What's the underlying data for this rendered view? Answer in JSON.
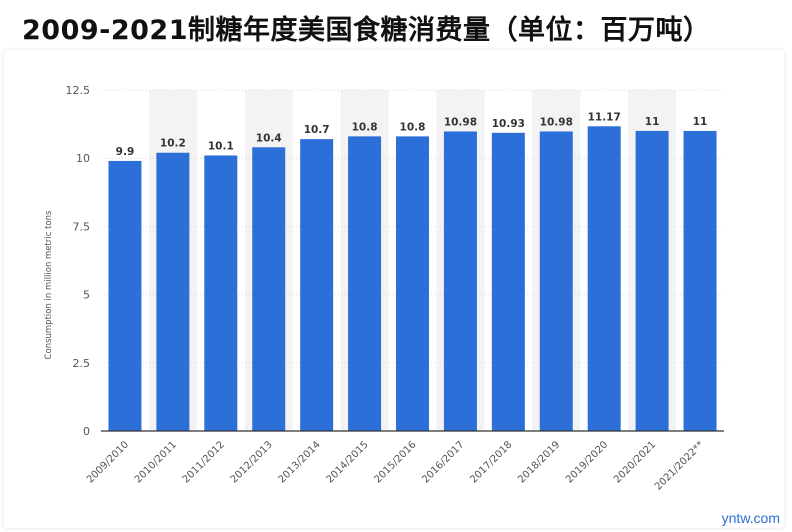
{
  "page": {
    "title": "2009-2021制糖年度美国食糖消费量（单位：百万吨）",
    "watermark": "yntw.com"
  },
  "colors": {
    "bar": "#2d6fd9",
    "stripe": "#f3f3f3",
    "grid": "#d9d9d9",
    "axis": "#333333",
    "text": "#333333",
    "tick": "#555555"
  },
  "chart_data": {
    "type": "bar",
    "categories": [
      "2009/2010",
      "2010/2011",
      "2011/2012",
      "2012/2013",
      "2013/2014",
      "2014/2015",
      "2015/2016",
      "2016/2017",
      "2017/2018",
      "2018/2019",
      "2019/2020",
      "2020/2021",
      "2021/2022**"
    ],
    "values": [
      9.9,
      10.2,
      10.1,
      10.4,
      10.7,
      10.8,
      10.8,
      10.98,
      10.93,
      10.98,
      11.17,
      11,
      11
    ],
    "value_labels": [
      "9.9",
      "10.2",
      "10.1",
      "10.4",
      "10.7",
      "10.8",
      "10.8",
      "10.98",
      "10.93",
      "10.98",
      "11.17",
      "11",
      "11"
    ],
    "ylabel": "Consumption in million metric tons",
    "xlabel": "",
    "ylim": [
      0,
      12.5
    ],
    "yticks": [
      0,
      2.5,
      5,
      7.5,
      10,
      12.5
    ],
    "ytick_labels": [
      "0",
      "2.5",
      "5",
      "7.5",
      "10",
      "12.5"
    ],
    "grid": true,
    "legend": "none"
  }
}
